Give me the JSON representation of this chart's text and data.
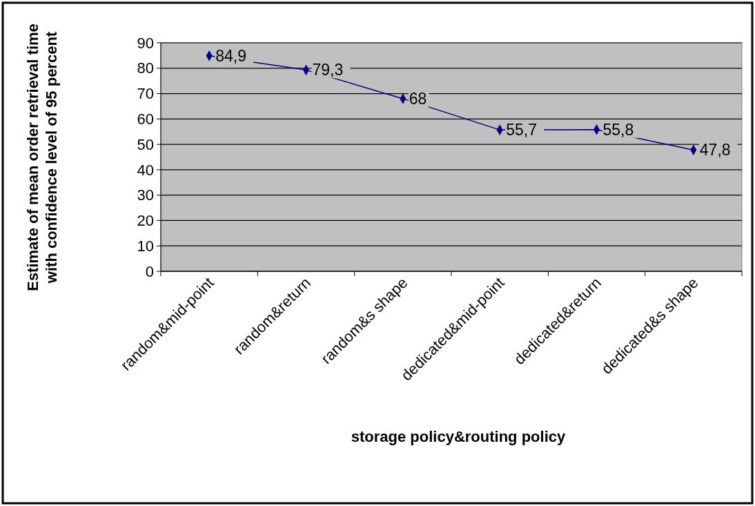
{
  "chart_data": {
    "type": "line",
    "xlabel": "storage policy&routing policy",
    "ylabel": "Estimate of mean order retrieval time with confidence level of 95 percent",
    "categories": [
      "random&mid-point",
      "random&return",
      "random&s shape",
      "dedicated&mid-point",
      "dedicated&return",
      "dedicated&s shape"
    ],
    "series": [
      {
        "color": "#000080",
        "values": [
          84.9,
          79.3,
          68,
          55.7,
          55.8,
          47.8
        ],
        "value_labels": [
          "84,9",
          "79,3",
          "68",
          "55,7",
          "55,8",
          "47,8"
        ]
      }
    ],
    "ylim": [
      0,
      90
    ],
    "yticks": [
      0,
      10,
      20,
      30,
      40,
      50,
      60,
      70,
      80,
      90
    ],
    "grid": "y",
    "marker": "diamond",
    "line_style": "solid"
  }
}
